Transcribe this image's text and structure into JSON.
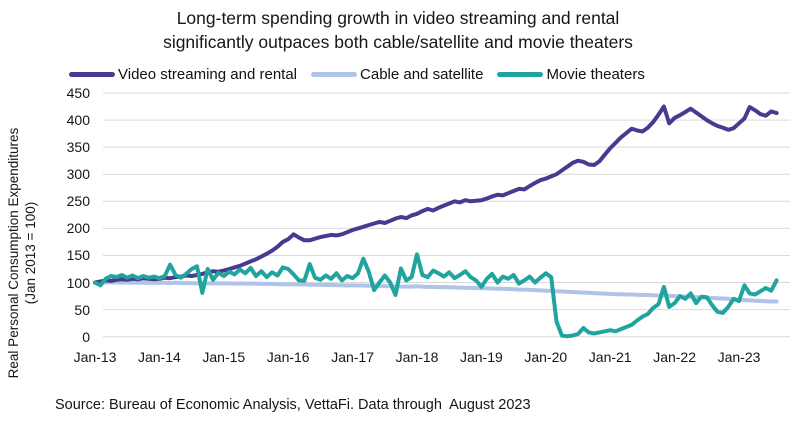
{
  "title": {
    "line1": "Long-term spending growth in video streaming and rental",
    "line2": "significantly outpaces both cable/satellite and movie theaters"
  },
  "legend": {
    "items": [
      {
        "label": "Video streaming and rental",
        "color": "#473B90"
      },
      {
        "label": "Cable and satellite",
        "color": "#AFC4E6"
      },
      {
        "label": "Movie theaters",
        "color": "#20A49E"
      }
    ]
  },
  "y_axis": {
    "label_line1": "Real Personal Consumption Expenditures",
    "label_line2": "(Jan 2013 = 100)"
  },
  "source": {
    "text": "Source: Bureau of Economic Analysis, VettaFi. Data through  August 2023"
  },
  "colors": {
    "gridline": "#D9D9D9",
    "text": "#161616",
    "background": "#FFFFFF"
  },
  "chart_data": {
    "type": "line",
    "title": "Long-term spending growth in video streaming and rental significantly outpaces both cable/satellite and movie theaters",
    "xlabel": "",
    "ylabel": "Real Personal Consumption Expenditures (Jan 2013 = 100)",
    "x_unit": "monthly, Jan-2013 through Aug-2023",
    "x_tick_labels": [
      "Jan-13",
      "Jan-14",
      "Jan-15",
      "Jan-16",
      "Jan-17",
      "Jan-18",
      "Jan-19",
      "Jan-20",
      "Jan-21",
      "Jan-22",
      "Jan-23"
    ],
    "y_ticks": [
      0,
      50,
      100,
      150,
      200,
      250,
      300,
      350,
      400,
      450
    ],
    "ylim": [
      0,
      450
    ],
    "grid": "horizontal",
    "legend_position": "top",
    "series": [
      {
        "name": "Video streaming and rental",
        "color": "#473B90",
        "values": [
          100,
          102,
          104,
          103,
          105,
          106,
          105,
          107,
          106,
          108,
          107,
          106,
          107,
          109,
          108,
          110,
          111,
          113,
          112,
          114,
          116,
          119,
          121,
          120,
          122,
          125,
          128,
          131,
          135,
          139,
          143,
          148,
          153,
          159,
          166,
          175,
          180,
          189,
          183,
          178,
          178,
          181,
          184,
          186,
          188,
          187,
          189,
          193,
          197,
          200,
          203,
          206,
          209,
          212,
          210,
          214,
          218,
          221,
          219,
          224,
          227,
          232,
          236,
          233,
          238,
          242,
          246,
          250,
          248,
          252,
          250,
          251,
          252,
          255,
          259,
          262,
          261,
          265,
          269,
          273,
          272,
          278,
          284,
          289,
          292,
          296,
          300,
          307,
          314,
          321,
          325,
          323,
          318,
          317,
          324,
          336,
          348,
          358,
          368,
          376,
          384,
          381,
          379,
          386,
          396,
          410,
          425,
          394,
          404,
          409,
          415,
          421,
          414,
          407,
          400,
          394,
          389,
          386,
          382,
          385,
          394,
          403,
          424,
          418,
          411,
          408,
          416,
          413
        ]
      },
      {
        "name": "Cable and satellite",
        "color": "#AFC4E6",
        "values": [
          100,
          100,
          100,
          100.5,
          100,
          100,
          100,
          99.5,
          100,
          99.5,
          99.5,
          99.5,
          99.5,
          99.5,
          99,
          99.5,
          99,
          99,
          99,
          98.5,
          99,
          98.5,
          98.5,
          98.5,
          98.5,
          98.5,
          98,
          98.5,
          98,
          98,
          98,
          97.5,
          97.5,
          97.5,
          97,
          97,
          97,
          97,
          96.5,
          96.5,
          96,
          96,
          96,
          95.5,
          95.5,
          95,
          95,
          94.5,
          95,
          94.5,
          94.5,
          94,
          94,
          93.5,
          93.5,
          93,
          93,
          92.5,
          92.5,
          92.5,
          93,
          92.5,
          92,
          92,
          91.5,
          91.5,
          91,
          91,
          90.5,
          90.5,
          90,
          90,
          89.5,
          89.5,
          89,
          88.5,
          88.5,
          88,
          87.5,
          87,
          87,
          86.5,
          86,
          85.5,
          85,
          84.5,
          84,
          83.5,
          83,
          82.5,
          82,
          81.5,
          81,
          80.5,
          80,
          79.5,
          79,
          78.5,
          78.5,
          78,
          78,
          77.5,
          77,
          77,
          76.5,
          76,
          75.5,
          75.5,
          75,
          74.5,
          74,
          73.5,
          73,
          72.5,
          72,
          71.5,
          71,
          70.5,
          70,
          69,
          68,
          67.5,
          67,
          66.5,
          66,
          65.5,
          65,
          65
        ]
      },
      {
        "name": "Movie theaters",
        "color": "#20A49E",
        "values": [
          100,
          95,
          107,
          112,
          110,
          114,
          109,
          113,
          108,
          112,
          109,
          111,
          108,
          112,
          133,
          114,
          109,
          116,
          125,
          130,
          81,
          125,
          105,
          118,
          112,
          120,
          115,
          124,
          117,
          127,
          112,
          121,
          110,
          119,
          113,
          128,
          125,
          115,
          104,
          103,
          134,
          109,
          105,
          113,
          107,
          117,
          104,
          112,
          108,
          117,
          144,
          120,
          86,
          100,
          113,
          100,
          77,
          126,
          104,
          110,
          152,
          114,
          110,
          122,
          117,
          111,
          119,
          108,
          114,
          121,
          110,
          104,
          92,
          107,
          116,
          100,
          111,
          107,
          114,
          98,
          104,
          111,
          100,
          109,
          117,
          110,
          28,
          2,
          1,
          2,
          5,
          16,
          8,
          6,
          8,
          10,
          12,
          10,
          14,
          18,
          22,
          30,
          37,
          42,
          53,
          60,
          92,
          55,
          62,
          75,
          70,
          80,
          62,
          74,
          73,
          58,
          46,
          44,
          55,
          70,
          66,
          95,
          80,
          78,
          84,
          90,
          85,
          104
        ]
      }
    ]
  }
}
